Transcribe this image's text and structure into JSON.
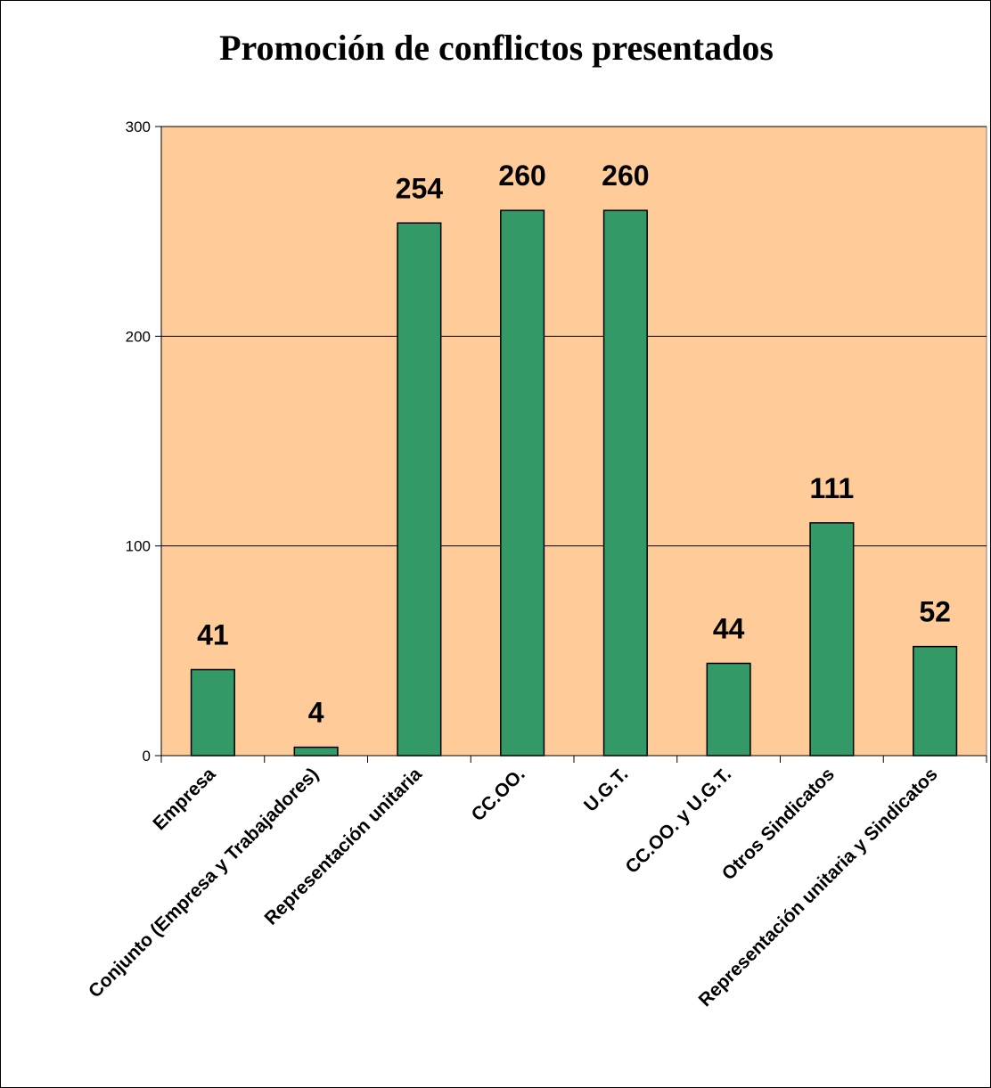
{
  "chart_data": {
    "type": "bar",
    "title": "Promoción de conflictos presentados",
    "xlabel": "",
    "ylabel": "",
    "categories": [
      "Empresa",
      "Conjunto (Empresa y Trabajadores)",
      "Representación unitaria",
      "CC.OO.",
      "U.G.T.",
      "CC.OO. y U.G.T.",
      "Otros Sindicatos",
      "Representación unitaria y Sindicatos"
    ],
    "values": [
      41,
      4,
      254,
      260,
      260,
      44,
      111,
      52
    ],
    "data_labels": [
      "41",
      "4",
      "254",
      "260",
      "260",
      "44",
      "111",
      "52"
    ],
    "ylim": [
      0,
      300
    ],
    "yticks": [
      0,
      100,
      200,
      300
    ],
    "ytick_labels": [
      "0",
      "100",
      "200",
      "300"
    ],
    "grid": true,
    "legend": "none",
    "colors": {
      "plot_background": "#FFCC99",
      "bar_fill": "#339966",
      "bar_stroke": "#000000",
      "gridline": "#000000"
    }
  }
}
